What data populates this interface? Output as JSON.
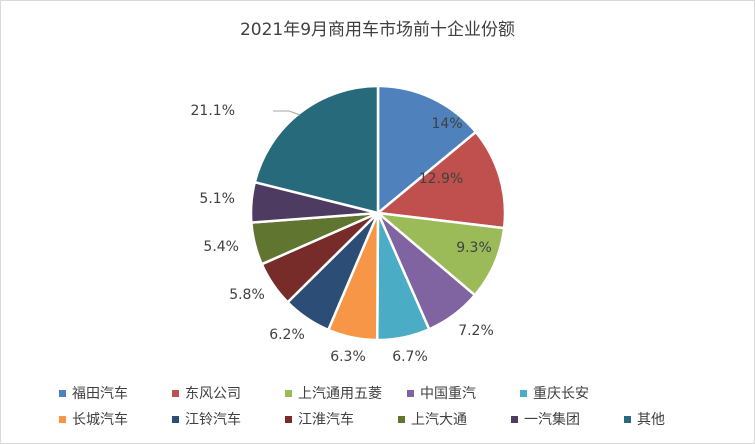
{
  "chart_data": {
    "type": "pie",
    "title": "2021年9月商用车市场前十企业份额",
    "slices": [
      {
        "name": "福田汽车",
        "value": 14.0,
        "label": "14%",
        "color": "#4F81BD"
      },
      {
        "name": "东风公司",
        "value": 12.9,
        "label": "12.9%",
        "color": "#C0504D"
      },
      {
        "name": "上汽通用五菱",
        "value": 9.3,
        "label": "9.3%",
        "color": "#9BBB59"
      },
      {
        "name": "中国重汽",
        "value": 7.2,
        "label": "7.2%",
        "color": "#8064A2"
      },
      {
        "name": "重庆长安",
        "value": 6.7,
        "label": "6.7%",
        "color": "#4BACC6"
      },
      {
        "name": "长城汽车",
        "value": 6.3,
        "label": "6.3%",
        "color": "#F79646"
      },
      {
        "name": "江铃汽车",
        "value": 6.2,
        "label": "6.2%",
        "color": "#2C4D75"
      },
      {
        "name": "江淮汽车",
        "value": 5.8,
        "label": "5.8%",
        "color": "#772C2A"
      },
      {
        "name": "上汽大通",
        "value": 5.4,
        "label": "5.4%",
        "color": "#5F7530"
      },
      {
        "name": "一汽集团",
        "value": 5.1,
        "label": "5.1%",
        "color": "#4D3B62"
      },
      {
        "name": "其他",
        "value": 21.1,
        "label": "21.1%",
        "color": "#276A7C"
      }
    ],
    "legend_position": "bottom"
  }
}
